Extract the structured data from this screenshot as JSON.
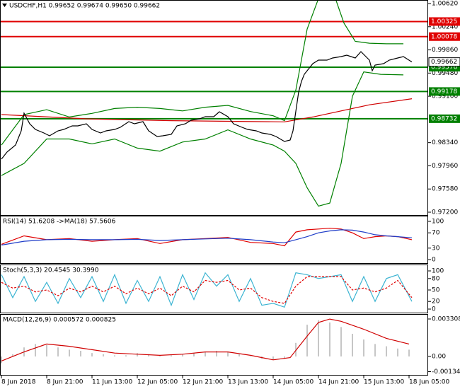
{
  "chart_data": [
    {
      "type": "line",
      "title": "USDCHF,H1  0.99652 0.99674 0.99650 0.99662",
      "xlim": [
        -0.5,
        150.75
      ],
      "ylim": [
        0.97142,
        1.00678
      ],
      "yticks": [
        {
          "value": 1.0062,
          "label": "1.00620"
        },
        {
          "value": 1.0024,
          "label": "1.00240"
        },
        {
          "value": 0.9986,
          "label": "0.99860"
        },
        {
          "value": 0.9948,
          "label": "0.99480"
        },
        {
          "value": 0.991,
          "label": "0.99100"
        },
        {
          "value": 0.9834,
          "label": "0.98340"
        },
        {
          "value": 0.9796,
          "label": "0.97960"
        },
        {
          "value": 0.9758,
          "label": "0.97580"
        },
        {
          "value": 0.972,
          "label": "0.97200"
        }
      ],
      "hlines": [
        1.00325,
        1.00078,
        0.99576,
        0.99178,
        0.98732
      ],
      "hline_colors": [
        "#e00000",
        "#e00000",
        "#008000",
        "#008000",
        "#008000"
      ],
      "last_price": 0.99662,
      "series": [
        {
          "color": "#008000",
          "x": [
            0,
            8,
            16,
            24,
            32,
            40,
            48,
            56,
            64,
            72,
            80,
            88,
            96,
            100,
            104,
            108,
            112,
            118,
            121,
            125,
            130,
            136,
            142
          ],
          "values": [
            0.983,
            0.988,
            0.9888,
            0.9876,
            0.9882,
            0.989,
            0.9892,
            0.989,
            0.9886,
            0.9892,
            0.9895,
            0.9885,
            0.9878,
            0.987,
            0.992,
            1.002,
            1.007,
            1.007,
            1.003,
            1.0,
            0.9997,
            0.9996,
            0.9996
          ]
        },
        {
          "color": "#008000",
          "x": [
            0,
            8,
            16,
            24,
            32,
            40,
            48,
            56,
            64,
            72,
            80,
            88,
            96,
            100,
            104,
            108,
            112,
            116,
            120,
            124,
            128,
            134,
            142
          ],
          "values": [
            0.978,
            0.98,
            0.984,
            0.984,
            0.9832,
            0.984,
            0.9825,
            0.982,
            0.9835,
            0.984,
            0.9855,
            0.984,
            0.983,
            0.982,
            0.98,
            0.976,
            0.973,
            0.9735,
            0.98,
            0.991,
            0.995,
            0.9946,
            0.9945
          ]
        },
        {
          "color": "#d00000",
          "x": [
            0,
            30,
            60,
            100,
            110,
            130,
            145
          ],
          "values": [
            0.988,
            0.9873,
            0.987,
            0.9868,
            0.9876,
            0.9896,
            0.9906
          ]
        },
        {
          "color": "#000000",
          "x": [
            0,
            2,
            5,
            7,
            8,
            10,
            12,
            15,
            17,
            20,
            22,
            25,
            27,
            30,
            32,
            35,
            37,
            40,
            42,
            45,
            47,
            50,
            52,
            55,
            57,
            60,
            62,
            65,
            67,
            70,
            72,
            75,
            77,
            80,
            82,
            85,
            87,
            90,
            92,
            95,
            97,
            100,
            102,
            103,
            105,
            106,
            107,
            110,
            112,
            115,
            117,
            120,
            122,
            125,
            127,
            130,
            131,
            132,
            135,
            137,
            140,
            142,
            145
          ],
          "values": [
            0.9807,
            0.98186,
            0.98301,
            0.98533,
            0.98823,
            0.98649,
            0.98556,
            0.98498,
            0.98452,
            0.98533,
            0.98556,
            0.98614,
            0.98614,
            0.98649,
            0.98556,
            0.98498,
            0.98533,
            0.98556,
            0.98591,
            0.98684,
            0.98649,
            0.98684,
            0.98533,
            0.9844,
            0.98452,
            0.98475,
            0.98614,
            0.98649,
            0.98707,
            0.9873,
            0.98765,
            0.98765,
            0.98846,
            0.98765,
            0.98649,
            0.98591,
            0.98556,
            0.98533,
            0.98498,
            0.98475,
            0.9844,
            0.98359,
            0.98383,
            0.98533,
            0.99171,
            0.99345,
            0.99461,
            0.99635,
            0.99693,
            0.99693,
            0.99727,
            0.99751,
            0.99774,
            0.99727,
            0.99832,
            0.99693,
            0.99519,
            0.99611,
            0.99635,
            0.99693,
            0.99727,
            0.99751,
            0.99662
          ]
        }
      ]
    },
    {
      "type": "line",
      "title": "RSI(14) 51.6208  ->MA(18) 57.5606",
      "xlim": [
        -0.5,
        150.75
      ],
      "ylim": [
        -11.1,
        114.8
      ],
      "yticks": [
        100,
        70,
        30,
        0
      ],
      "series": [
        {
          "color": "#e00000",
          "x": [
            0,
            8,
            16,
            24,
            32,
            40,
            48,
            56,
            64,
            72,
            80,
            88,
            96,
            100,
            104,
            108,
            112,
            116,
            120,
            124,
            128,
            132,
            136,
            140,
            145
          ],
          "values": [
            40,
            62,
            52,
            55,
            48,
            52,
            55,
            42,
            52,
            55,
            58,
            45,
            42,
            36,
            72,
            78,
            80,
            82,
            80,
            70,
            55,
            60,
            62,
            60,
            52
          ]
        },
        {
          "color": "#1e3cc8",
          "x": [
            0,
            8,
            16,
            24,
            32,
            40,
            48,
            56,
            64,
            72,
            80,
            88,
            96,
            100,
            104,
            108,
            112,
            116,
            120,
            124,
            128,
            132,
            136,
            140,
            145
          ],
          "values": [
            38,
            48,
            52,
            53,
            52,
            52,
            53,
            50,
            52,
            54,
            56,
            52,
            46,
            44,
            52,
            60,
            70,
            75,
            78,
            77,
            72,
            65,
            62,
            60,
            57
          ]
        }
      ]
    },
    {
      "type": "line",
      "title": "Stoch(5,3,3) 20.4545 30.3990",
      "xlim": [
        -0.5,
        150.75
      ],
      "ylim": [
        -11.1,
        116.7
      ],
      "yticks": [
        100,
        80,
        50,
        20,
        0
      ],
      "series": [
        {
          "color": "#3cb4d2",
          "x": [
            0,
            4,
            8,
            12,
            16,
            20,
            24,
            28,
            32,
            36,
            40,
            44,
            48,
            52,
            56,
            60,
            64,
            68,
            72,
            76,
            80,
            84,
            88,
            92,
            96,
            100,
            104,
            108,
            112,
            116,
            120,
            124,
            128,
            132,
            136,
            140,
            145
          ],
          "values": [
            90,
            30,
            85,
            20,
            70,
            15,
            80,
            30,
            85,
            20,
            90,
            15,
            75,
            20,
            85,
            10,
            90,
            25,
            95,
            60,
            90,
            20,
            80,
            10,
            15,
            5,
            95,
            90,
            80,
            85,
            90,
            20,
            85,
            20,
            80,
            90,
            20
          ]
        },
        {
          "color": "#e00000",
          "dash": true,
          "x": [
            0,
            4,
            8,
            12,
            16,
            20,
            24,
            28,
            32,
            36,
            40,
            44,
            48,
            52,
            56,
            60,
            64,
            68,
            72,
            76,
            80,
            84,
            88,
            92,
            96,
            100,
            104,
            108,
            112,
            116,
            120,
            124,
            128,
            132,
            136,
            140,
            145
          ],
          "values": [
            70,
            55,
            60,
            45,
            50,
            35,
            55,
            45,
            60,
            45,
            60,
            40,
            55,
            40,
            55,
            35,
            60,
            45,
            75,
            70,
            75,
            50,
            55,
            30,
            20,
            15,
            60,
            85,
            85,
            85,
            85,
            50,
            55,
            45,
            55,
            75,
            30
          ]
        }
      ]
    },
    {
      "type": "bar",
      "title": "MACD(12,26,9) 0.000572 0.000825",
      "xlim": [
        -0.5,
        150.75
      ],
      "ylim": [
        -0.001685,
        0.003745
      ],
      "yticks": [
        0.003308,
        {
          "value": 0,
          "label": "0.00"
        },
        -0.001342
      ],
      "xticks": [
        {
          "value": 0,
          "label": "8 Jun 2018"
        },
        {
          "value": 16,
          "label": "8 Jun 21:00"
        },
        {
          "value": 32,
          "label": "11 Jun 13:00"
        },
        {
          "value": 48,
          "label": "12 Jun 05:00"
        },
        {
          "value": 64,
          "label": "12 Jun 21:00"
        },
        {
          "value": 80,
          "label": "13 Jun 13:00"
        },
        {
          "value": 96,
          "label": "14 Jun 05:00"
        },
        {
          "value": 112,
          "label": "14 Jun 21:00"
        },
        {
          "value": 128,
          "label": "15 Jun 13:00"
        },
        {
          "value": 144,
          "label": "18 Jun 05:00"
        }
      ],
      "color": "#b4b4b4",
      "x": [
        0,
        4,
        8,
        12,
        16,
        20,
        24,
        28,
        32,
        36,
        40,
        44,
        48,
        52,
        56,
        60,
        64,
        68,
        72,
        76,
        80,
        84,
        88,
        92,
        96,
        100,
        104,
        108,
        112,
        116,
        120,
        124,
        128,
        132,
        136,
        140,
        144
      ],
      "values": [
        -0.0006,
        0.0002,
        0.0008,
        0.0011,
        0.001,
        0.0008,
        0.0006,
        0.0005,
        0.0003,
        0.0002,
        0.0001,
        0.0001,
        0.0003,
        0.0002,
        0.0001,
        0.0001,
        0.0002,
        0.0003,
        0.0004,
        0.0005,
        0.0004,
        0.0002,
        0.0,
        -0.0002,
        -0.0003,
        -0.0002,
        0.0012,
        0.0028,
        0.0032,
        0.003,
        0.0026,
        0.002,
        0.0015,
        0.0011,
        0.0009,
        0.0007,
        0.0006
      ],
      "series": [
        {
          "color": "#d00000",
          "x": [
            0,
            8,
            16,
            24,
            32,
            40,
            48,
            56,
            64,
            72,
            80,
            88,
            96,
            102,
            108,
            112,
            116,
            120,
            128,
            136,
            144
          ],
          "values": [
            -0.0004,
            0.0004,
            0.0011,
            0.0009,
            0.0006,
            0.0003,
            0.0002,
            0.0001,
            0.0002,
            0.0004,
            0.0004,
            0.0001,
            -0.0003,
            -0.0001,
            0.0018,
            0.003,
            0.0033,
            0.0031,
            0.0024,
            0.0016,
            0.0011
          ]
        }
      ]
    }
  ]
}
